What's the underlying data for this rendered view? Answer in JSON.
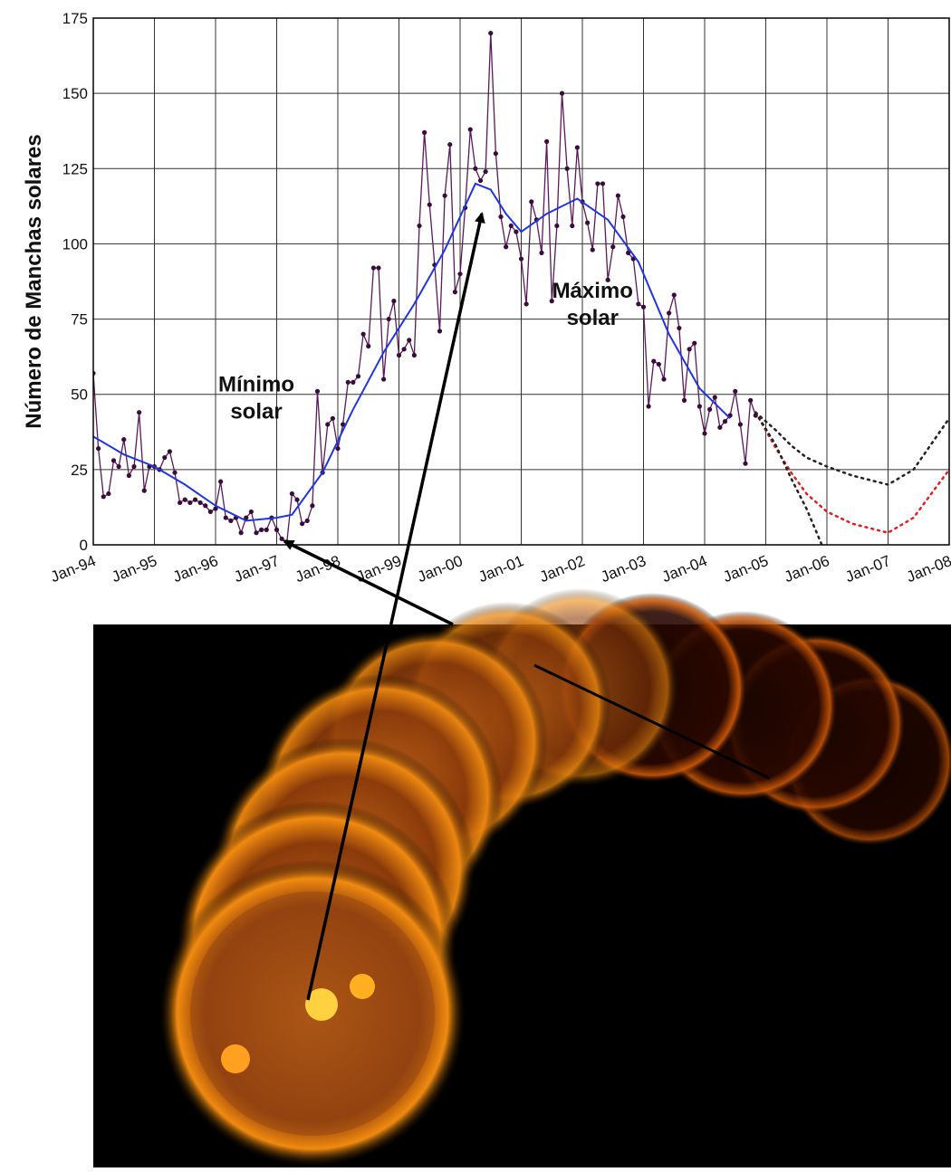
{
  "chart_data": {
    "type": "line",
    "ylabel": "Número de Manchas solares",
    "xlim": [
      "1994-01",
      "2008-01"
    ],
    "xticks": [
      {
        "value": "1994-01",
        "label": "Jan-94"
      },
      {
        "value": "1995-01",
        "label": "Jan-95"
      },
      {
        "value": "1996-01",
        "label": "Jan-96"
      },
      {
        "value": "1997-01",
        "label": "Jan-97"
      },
      {
        "value": "1998-01",
        "label": "Jan-98"
      },
      {
        "value": "1999-01",
        "label": "Jan-99"
      },
      {
        "value": "2000-01",
        "label": "Jan-00"
      },
      {
        "value": "2001-01",
        "label": "Jan-01"
      },
      {
        "value": "2002-01",
        "label": "Jan-02"
      },
      {
        "value": "2003-01",
        "label": "Jan-03"
      },
      {
        "value": "2004-01",
        "label": "Jan-04"
      },
      {
        "value": "2005-01",
        "label": "Jan-05"
      },
      {
        "value": "2006-01",
        "label": "Jan-06"
      },
      {
        "value": "2007-01",
        "label": "Jan-07"
      },
      {
        "value": "2008-01",
        "label": "Jan-08"
      }
    ],
    "ylim": [
      0,
      175
    ],
    "yticks": [
      0,
      25,
      50,
      75,
      100,
      125,
      150,
      175
    ],
    "grid": true,
    "annotations": [
      {
        "x": "1996-09",
        "y": 42,
        "lines": [
          "Mínimo",
          "solar"
        ]
      },
      {
        "x": "2002-03",
        "y": 73,
        "lines": [
          "Máximo",
          "solar"
        ]
      }
    ],
    "series": [
      {
        "color": "#5a1a5a",
        "style": "solid",
        "markers": true,
        "x": [
          "1994-01",
          "1994-02",
          "1994-03",
          "1994-04",
          "1994-05",
          "1994-06",
          "1994-07",
          "1994-08",
          "1994-09",
          "1994-10",
          "1994-11",
          "1994-12",
          "1995-01",
          "1995-02",
          "1995-03",
          "1995-04",
          "1995-05",
          "1995-06",
          "1995-07",
          "1995-08",
          "1995-09",
          "1995-10",
          "1995-11",
          "1995-12",
          "1996-01",
          "1996-02",
          "1996-03",
          "1996-04",
          "1996-05",
          "1996-06",
          "1996-07",
          "1996-08",
          "1996-09",
          "1996-10",
          "1996-11",
          "1996-12",
          "1997-01",
          "1997-02",
          "1997-03",
          "1997-04",
          "1997-05",
          "1997-06",
          "1997-07",
          "1997-08",
          "1997-09",
          "1997-10",
          "1997-11",
          "1997-12",
          "1998-01",
          "1998-02",
          "1998-03",
          "1998-04",
          "1998-05",
          "1998-06",
          "1998-07",
          "1998-08",
          "1998-09",
          "1998-10",
          "1998-11",
          "1998-12",
          "1999-01",
          "1999-02",
          "1999-03",
          "1999-04",
          "1999-05",
          "1999-06",
          "1999-07",
          "1999-08",
          "1999-09",
          "1999-10",
          "1999-11",
          "1999-12",
          "2000-01",
          "2000-02",
          "2000-03",
          "2000-04",
          "2000-05",
          "2000-06",
          "2000-07",
          "2000-08",
          "2000-09",
          "2000-10",
          "2000-11",
          "2000-12",
          "2001-01",
          "2001-02",
          "2001-03",
          "2001-04",
          "2001-05",
          "2001-06",
          "2001-07",
          "2001-08",
          "2001-09",
          "2001-10",
          "2001-11",
          "2001-12",
          "2002-01",
          "2002-02",
          "2002-03",
          "2002-04",
          "2002-05",
          "2002-06",
          "2002-07",
          "2002-08",
          "2002-09",
          "2002-10",
          "2002-11",
          "2002-12",
          "2003-01",
          "2003-02",
          "2003-03",
          "2003-04",
          "2003-05",
          "2003-06",
          "2003-07",
          "2003-08",
          "2003-09",
          "2003-10",
          "2003-11",
          "2003-12",
          "2004-01",
          "2004-02",
          "2004-03",
          "2004-04",
          "2004-05",
          "2004-06",
          "2004-07",
          "2004-08",
          "2004-09",
          "2004-10",
          "2004-11"
        ],
        "values": [
          57,
          32,
          16,
          17,
          28,
          26,
          35,
          23,
          26,
          44,
          18,
          26,
          26,
          25,
          29,
          31,
          24,
          14,
          15,
          14,
          15,
          14,
          13,
          11,
          12,
          21,
          9,
          8,
          9,
          4,
          9,
          11,
          4,
          5,
          5,
          9,
          5,
          2,
          1,
          17,
          15,
          7,
          8,
          13,
          51,
          24,
          40,
          42,
          32,
          40,
          54,
          54,
          56,
          70,
          66,
          92,
          92,
          55,
          75,
          81,
          63,
          65,
          68,
          63,
          106,
          137,
          113,
          93,
          71,
          116,
          133,
          84,
          90,
          112,
          138,
          125,
          121,
          124,
          170,
          130,
          109,
          99,
          106,
          104,
          95,
          80,
          114,
          108,
          97,
          134,
          81,
          106,
          150,
          125,
          106,
          132,
          114,
          107,
          98,
          120,
          120,
          88,
          99,
          116,
          109,
          97,
          95,
          80,
          79,
          46,
          61,
          60,
          55,
          77,
          83,
          72,
          48,
          65,
          67,
          46,
          37,
          45,
          49,
          39,
          41,
          43,
          51,
          40,
          27,
          48,
          43
        ]
      },
      {
        "color": "#1f35e0",
        "style": "solid",
        "markers": false,
        "x": [
          "1994-01",
          "1994-07",
          "1995-01",
          "1995-07",
          "1996-01",
          "1996-07",
          "1997-01",
          "1997-04",
          "1997-10",
          "1998-04",
          "1998-10",
          "1999-04",
          "1999-10",
          "2000-04",
          "2000-07",
          "2000-10",
          "2001-01",
          "2001-06",
          "2001-12",
          "2002-06",
          "2002-12",
          "2003-06",
          "2003-12",
          "2004-06"
        ],
        "values": [
          36,
          30,
          26,
          20,
          13,
          8,
          9,
          10,
          24,
          45,
          64,
          80,
          98,
          120,
          118,
          110,
          104,
          110,
          115,
          108,
          94,
          70,
          52,
          42
        ]
      },
      {
        "color": "#222222",
        "style": "dotted",
        "markers": false,
        "x": [
          "2004-11",
          "2005-03",
          "2005-06",
          "2005-09",
          "2006-01",
          "2006-06",
          "2007-01",
          "2007-06",
          "2008-01"
        ],
        "values": [
          44,
          38,
          33,
          29,
          26,
          23,
          20,
          25,
          42
        ]
      },
      {
        "color": "#e02020",
        "style": "dotted",
        "markers": false,
        "x": [
          "2004-11",
          "2005-03",
          "2005-06",
          "2005-09",
          "2006-01",
          "2006-06",
          "2007-01",
          "2007-06",
          "2008-01"
        ],
        "values": [
          44,
          32,
          24,
          17,
          11,
          7,
          4,
          9,
          25
        ]
      },
      {
        "color": "#222222",
        "style": "dotted",
        "markers": false,
        "x": [
          "2004-11",
          "2005-03",
          "2005-06",
          "2005-09",
          "2005-12"
        ],
        "values": [
          44,
          33,
          22,
          12,
          0
        ]
      }
    ]
  }
}
